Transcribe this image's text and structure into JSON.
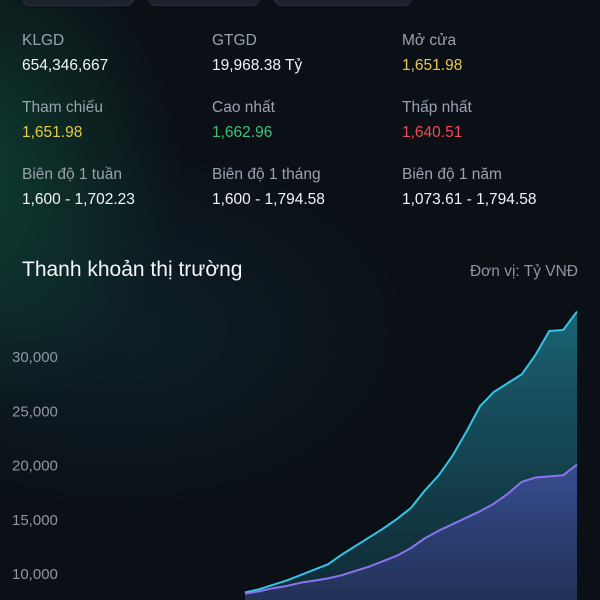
{
  "stats": [
    {
      "label": "KLGD",
      "value": "654,346,667",
      "tone": "default"
    },
    {
      "label": "GTGD",
      "value": "19,968.38 Tỷ",
      "tone": "default"
    },
    {
      "label": "Mở cửa",
      "value": "1,651.98",
      "tone": "yellow"
    },
    {
      "label": "Tham chiếu",
      "value": "1,651.98",
      "tone": "yellow"
    },
    {
      "label": "Cao nhất",
      "value": "1,662.96",
      "tone": "green"
    },
    {
      "label": "Thấp nhất",
      "value": "1,640.51",
      "tone": "red"
    },
    {
      "label": "Biên độ 1 tuần",
      "value": "1,600 - 1,702.23",
      "tone": "default"
    },
    {
      "label": "Biên độ 1 tháng",
      "value": "1,600 - 1,794.58",
      "tone": "default"
    },
    {
      "label": "Biên độ 1 năm",
      "value": "1,073.61 - 1,794.58",
      "tone": "default"
    }
  ],
  "liquidity": {
    "title": "Thanh khoản thị trường",
    "unit": "Đơn vị: Tỷ VNĐ"
  },
  "colors": {
    "background": "#0b0f16",
    "series_cyan": "#33c6e6",
    "series_purple": "#8b74f0",
    "yellow": "#e8c84a",
    "green": "#3ec27a",
    "red": "#ef4a55"
  },
  "chart_data": {
    "type": "area",
    "title": "Thanh khoản thị trường",
    "xlabel": "",
    "ylabel": "Đơn vị: Tỷ VNĐ",
    "ylim": [
      9000,
      35000
    ],
    "y_ticks": [
      10000,
      15000,
      20000,
      25000,
      30000
    ],
    "y_tick_labels": [
      "10,000",
      "15,000",
      "20,000",
      "25,000",
      "30,000"
    ],
    "grid": false,
    "x": [
      0,
      1,
      2,
      3,
      4,
      5,
      6,
      7,
      8,
      9,
      10,
      11,
      12,
      13,
      14,
      15,
      16,
      17,
      18,
      19,
      20,
      21,
      22,
      23,
      24
    ],
    "series": [
      {
        "color": "#33c6e6",
        "values": [
          8200,
          8500,
          8900,
          9300,
          9800,
          10300,
          10800,
          11700,
          12500,
          13300,
          14100,
          15000,
          16000,
          17600,
          19000,
          20800,
          23000,
          25400,
          26700,
          27500,
          28300,
          30100,
          32300,
          32400,
          34100
        ]
      },
      {
        "color": "#8b74f0",
        "values": [
          8100,
          8300,
          8600,
          8800,
          9100,
          9300,
          9500,
          9800,
          10200,
          10600,
          11100,
          11600,
          12300,
          13200,
          13900,
          14500,
          15100,
          15700,
          16400,
          17300,
          18400,
          18800,
          18900,
          19000,
          20000
        ]
      }
    ]
  }
}
